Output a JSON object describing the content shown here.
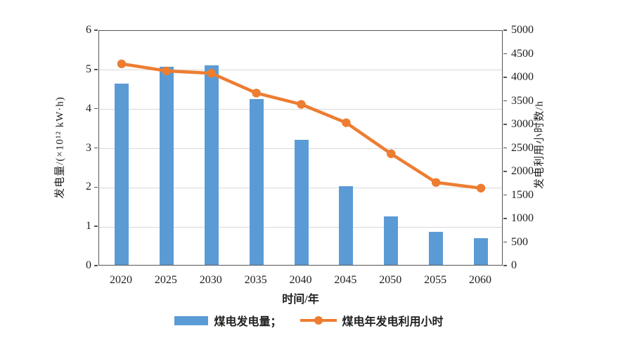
{
  "figure": {
    "background": "#ffffff",
    "x_axis_title": "时间/年",
    "left_axis_title": "发电量/(×10¹² kW·h)",
    "right_axis_title": "发电利用小时数/h"
  },
  "legend": {
    "bar_label": "煤电发电量；",
    "line_label": "煤电年发电利用小时"
  },
  "colors": {
    "bar": "#5b9bd5",
    "line": "#ed7d31",
    "grid": "#d9d9d9",
    "axis": "#555555",
    "text": "#1f1f1f"
  },
  "chart_data": {
    "type": "bar",
    "subtype": "bar+line combo, dual y-axes",
    "categories": [
      "2020",
      "2025",
      "2030",
      "2035",
      "2040",
      "2045",
      "2050",
      "2055",
      "2060"
    ],
    "series": [
      {
        "name": "煤电发电量",
        "type": "bar",
        "axis": "left",
        "color": "#5b9bd5",
        "values": [
          4.63,
          5.05,
          5.08,
          4.22,
          3.19,
          2.0,
          1.24,
          0.84,
          0.68
        ]
      },
      {
        "name": "煤电年发电利用小时",
        "type": "line",
        "axis": "right",
        "color": "#ed7d31",
        "marker": "circle",
        "values": [
          4300,
          4150,
          4100,
          3680,
          3440,
          3050,
          2390,
          1780,
          1660
        ]
      }
    ],
    "title": "",
    "xlabel": "时间/年",
    "left_axis": {
      "label": "发电量/(×10¹² kW·h)",
      "min": 0,
      "max": 6,
      "ticks": [
        0,
        1,
        2,
        3,
        4,
        5,
        6
      ]
    },
    "right_axis": {
      "label": "发电利用小时数/h",
      "min": 0,
      "max": 5000,
      "ticks": [
        0,
        500,
        1000,
        1500,
        2000,
        2500,
        3000,
        3500,
        4000,
        4500,
        5000
      ]
    },
    "grid": "horizontal gridlines at left-axis integers",
    "legend_position": "bottom-center"
  }
}
